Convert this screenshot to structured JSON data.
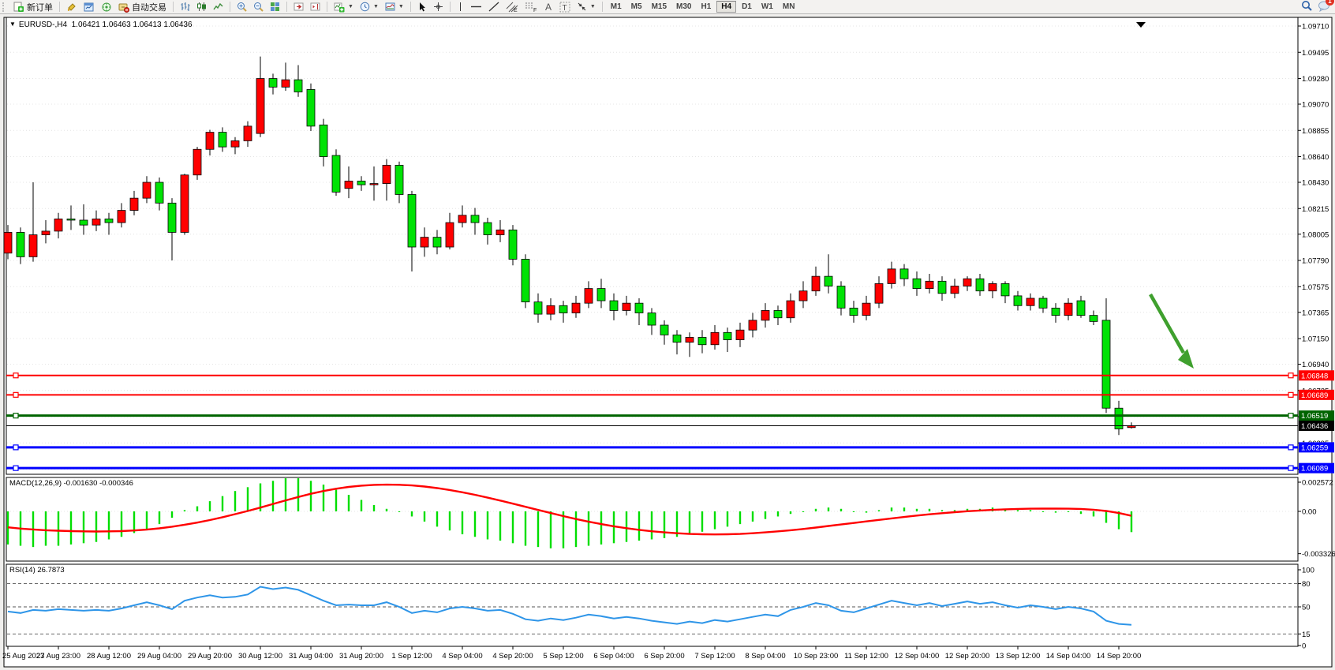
{
  "toolbar": {
    "new_order_label": "新订单",
    "auto_trading_label": "自动交易",
    "timeframes": [
      "M1",
      "M5",
      "M15",
      "M30",
      "H1",
      "H4",
      "D1",
      "W1",
      "MN"
    ],
    "active_timeframe": "H4",
    "notification_count": "1",
    "icon_names": [
      "new-order-icon",
      "styler-icon",
      "market-watch-icon",
      "navigator-icon",
      "auto-trading-icon",
      "bar-chart-icon",
      "candlestick-chart-icon",
      "line-chart-icon",
      "zoom-in-icon",
      "zoom-out-icon",
      "tile-windows-icon",
      "auto-scroll-icon",
      "chart-shift-icon",
      "indicators-icon",
      "periods-icon",
      "templates-icon",
      "cursor-icon",
      "crosshair-icon",
      "vertical-line-icon",
      "horizontal-line-icon",
      "trendline-icon",
      "equidistant-channel-icon",
      "fibonacci-icon",
      "text-icon",
      "label-icon",
      "arrows-icon",
      "search-icon",
      "chat-icon"
    ]
  },
  "chart_header": {
    "dropdown_glyph": "▼",
    "symbol_period": "EURUSD-,H4",
    "ohlc": "1.06421 1.06463 1.06413 1.06436"
  },
  "chart_data": {
    "type": "candlestick-with-indicators",
    "symbol": "EURUSD-",
    "period": "H4",
    "current_ohlc": {
      "open": 1.06421,
      "high": 1.06463,
      "low": 1.06413,
      "close": 1.06436
    },
    "price_axis_ticks": [
      1.0971,
      1.09495,
      1.0928,
      1.0907,
      1.08855,
      1.0864,
      1.0843,
      1.08215,
      1.08005,
      1.0779,
      1.07575,
      1.07365,
      1.0715,
      1.0694,
      1.06725,
      1.0651,
      1.06295,
      1.0608
    ],
    "x_axis_labels": [
      "25 Aug 2023",
      "27 Aug 23:00",
      "28 Aug 12:00",
      "29 Aug 04:00",
      "29 Aug 20:00",
      "30 Aug 12:00",
      "31 Aug 04:00",
      "31 Aug 20:00",
      "1 Sep 12:00",
      "4 Sep 04:00",
      "4 Sep 20:00",
      "5 Sep 12:00",
      "6 Sep 04:00",
      "6 Sep 20:00",
      "7 Sep 12:00",
      "8 Sep 04:00",
      "10 Sep 23:00",
      "11 Sep 12:00",
      "12 Sep 04:00",
      "12 Sep 20:00",
      "13 Sep 12:00",
      "14 Sep 04:00",
      "14 Sep 20:00"
    ],
    "x_label_step": 4,
    "candles": [
      [
        1.0785,
        1.0808,
        1.078,
        1.0802
      ],
      [
        1.0802,
        1.0806,
        1.0776,
        1.0782
      ],
      [
        1.0782,
        1.0843,
        1.0778,
        1.08
      ],
      [
        1.08,
        1.0812,
        1.0793,
        1.0803
      ],
      [
        1.0803,
        1.0818,
        1.0797,
        1.0813
      ],
      [
        1.0813,
        1.0824,
        1.0804,
        1.0812
      ],
      [
        1.0812,
        1.0825,
        1.08,
        1.0808
      ],
      [
        1.0808,
        1.082,
        1.0803,
        1.0813
      ],
      [
        1.0813,
        1.0818,
        1.08,
        1.081
      ],
      [
        1.081,
        1.0826,
        1.0806,
        1.082
      ],
      [
        1.082,
        1.0836,
        1.0816,
        1.083
      ],
      [
        1.083,
        1.0848,
        1.0826,
        1.0843
      ],
      [
        1.0843,
        1.0847,
        1.082,
        1.0826
      ],
      [
        1.0826,
        1.083,
        1.0779,
        1.0802
      ],
      [
        1.0802,
        1.085,
        1.08,
        1.0849
      ],
      [
        1.0849,
        1.0872,
        1.0845,
        1.087
      ],
      [
        1.087,
        1.0886,
        1.0865,
        1.0884
      ],
      [
        1.0884,
        1.0888,
        1.0868,
        1.0872
      ],
      [
        1.0872,
        1.088,
        1.0866,
        1.0877
      ],
      [
        1.0877,
        1.0893,
        1.0872,
        1.0889
      ],
      [
        1.0883,
        1.0946,
        1.088,
        1.0928
      ],
      [
        1.0928,
        1.0932,
        1.0915,
        1.0921
      ],
      [
        1.0921,
        1.0941,
        1.0918,
        1.0927
      ],
      [
        1.0927,
        1.0939,
        1.0913,
        1.0917
      ],
      [
        1.0919,
        1.0924,
        1.0885,
        1.0889
      ],
      [
        1.089,
        1.0895,
        1.0856,
        1.0864
      ],
      [
        1.0865,
        1.087,
        1.0832,
        1.0835
      ],
      [
        1.0838,
        1.0856,
        1.083,
        1.0844
      ],
      [
        1.0844,
        1.0848,
        1.0836,
        1.0841
      ],
      [
        1.0841,
        1.0856,
        1.0828,
        1.0842
      ],
      [
        1.0842,
        1.0862,
        1.0828,
        1.0857
      ],
      [
        1.0857,
        1.086,
        1.0826,
        1.0833
      ],
      [
        1.0833,
        1.0836,
        1.077,
        1.079
      ],
      [
        1.079,
        1.0806,
        1.0782,
        1.0798
      ],
      [
        1.0798,
        1.0804,
        1.0784,
        1.079
      ],
      [
        1.079,
        1.0818,
        1.0788,
        1.081
      ],
      [
        1.081,
        1.0824,
        1.0806,
        1.0816
      ],
      [
        1.0816,
        1.0822,
        1.08,
        1.081
      ],
      [
        1.081,
        1.0814,
        1.0792,
        1.08
      ],
      [
        1.08,
        1.0812,
        1.0794,
        1.0804
      ],
      [
        1.0804,
        1.0808,
        1.0775,
        1.078
      ],
      [
        1.078,
        1.0784,
        1.074,
        1.0745
      ],
      [
        1.0745,
        1.0752,
        1.0728,
        1.0735
      ],
      [
        1.0735,
        1.0748,
        1.073,
        1.0742
      ],
      [
        1.0742,
        1.0746,
        1.0728,
        1.0736
      ],
      [
        1.0736,
        1.075,
        1.0732,
        1.0744
      ],
      [
        1.0744,
        1.0762,
        1.074,
        1.0756
      ],
      [
        1.0756,
        1.0764,
        1.074,
        1.0746
      ],
      [
        1.0746,
        1.0752,
        1.073,
        1.0738
      ],
      [
        1.0738,
        1.075,
        1.0734,
        1.0744
      ],
      [
        1.0744,
        1.0748,
        1.0726,
        1.0736
      ],
      [
        1.0736,
        1.074,
        1.0718,
        1.0726
      ],
      [
        1.0726,
        1.073,
        1.071,
        1.0718
      ],
      [
        1.0718,
        1.0722,
        1.0702,
        1.0712
      ],
      [
        1.0712,
        1.072,
        1.07,
        1.0716
      ],
      [
        1.0716,
        1.0722,
        1.0703,
        1.071
      ],
      [
        1.071,
        1.0726,
        1.0706,
        1.072
      ],
      [
        1.072,
        1.0724,
        1.0704,
        1.0714
      ],
      [
        1.0714,
        1.0728,
        1.0708,
        1.0722
      ],
      [
        1.0722,
        1.0736,
        1.0716,
        1.073
      ],
      [
        1.073,
        1.0744,
        1.0724,
        1.0738
      ],
      [
        1.0738,
        1.0742,
        1.0726,
        1.0732
      ],
      [
        1.0732,
        1.0752,
        1.0728,
        1.0746
      ],
      [
        1.0746,
        1.0762,
        1.074,
        1.0754
      ],
      [
        1.0754,
        1.0774,
        1.075,
        1.0766
      ],
      [
        1.0766,
        1.0784,
        1.0752,
        1.0758
      ],
      [
        1.0758,
        1.0762,
        1.0734,
        1.074
      ],
      [
        1.074,
        1.0746,
        1.0728,
        1.0734
      ],
      [
        1.0734,
        1.075,
        1.073,
        1.0744
      ],
      [
        1.0744,
        1.0766,
        1.074,
        1.076
      ],
      [
        1.076,
        1.0778,
        1.0756,
        1.0772
      ],
      [
        1.0772,
        1.0776,
        1.0758,
        1.0764
      ],
      [
        1.0764,
        1.077,
        1.075,
        1.0756
      ],
      [
        1.0756,
        1.0768,
        1.0752,
        1.0762
      ],
      [
        1.0762,
        1.0766,
        1.0746,
        1.0752
      ],
      [
        1.0752,
        1.0764,
        1.0748,
        1.0758
      ],
      [
        1.0758,
        1.0766,
        1.0754,
        1.0764
      ],
      [
        1.0764,
        1.0768,
        1.075,
        1.0754
      ],
      [
        1.0754,
        1.0762,
        1.0748,
        1.076
      ],
      [
        1.076,
        1.0762,
        1.0744,
        1.075
      ],
      [
        1.075,
        1.0754,
        1.0738,
        1.0742
      ],
      [
        1.0742,
        1.0752,
        1.0738,
        1.0748
      ],
      [
        1.0748,
        1.075,
        1.0736,
        1.074
      ],
      [
        1.074,
        1.0744,
        1.0728,
        1.0734
      ],
      [
        1.0734,
        1.0748,
        1.073,
        1.0744
      ],
      [
        1.0746,
        1.075,
        1.0732,
        1.0734
      ],
      [
        1.0734,
        1.0738,
        1.0726,
        1.0729
      ],
      [
        1.073,
        1.0748,
        1.0654,
        1.0658
      ],
      [
        1.0658,
        1.0664,
        1.0636,
        1.0641
      ],
      [
        1.06421,
        1.06463,
        1.06413,
        1.06436
      ]
    ],
    "hlines": [
      {
        "price": 1.06848,
        "color": "#FF0000",
        "width": 2,
        "handles": true
      },
      {
        "price": 1.06689,
        "color": "#FF0000",
        "width": 2,
        "handles": true
      },
      {
        "price": 1.06519,
        "color": "#006400",
        "width": 3,
        "handles": true
      },
      {
        "price": 1.06436,
        "color": "#000000",
        "width": 1,
        "handles": false,
        "current": true
      },
      {
        "price": 1.06259,
        "color": "#0000FF",
        "width": 3,
        "handles": true
      },
      {
        "price": 1.06089,
        "color": "#0000FF",
        "width": 3,
        "handles": true
      }
    ],
    "arrow_annotation": {
      "color": "#3FA02E",
      "direction": "down-right"
    },
    "macd": {
      "label": "MACD(12,26,9) -0.001630 -0.000346",
      "main_value": -0.00163,
      "signal_value": -0.000346,
      "axis_ticks": [
        "0.002572",
        "0.00",
        "-0.003326"
      ],
      "axis_tick_values": [
        0.002572,
        0,
        -0.003326
      ],
      "histogram": [
        -0.0026,
        -0.0027,
        -0.0028,
        -0.0027,
        -0.0027,
        -0.0026,
        -0.0025,
        -0.0024,
        -0.0022,
        -0.002,
        -0.0017,
        -0.0014,
        -0.001,
        -0.0005,
        0.0001,
        0.0004,
        0.0008,
        0.0012,
        0.0016,
        0.0019,
        0.0022,
        0.0024,
        0.0026,
        0.0026,
        0.0024,
        0.0021,
        0.0017,
        0.0013,
        0.0009,
        0.0005,
        0.0002,
        0.0,
        -0.0004,
        -0.0008,
        -0.0012,
        -0.0015,
        -0.0018,
        -0.002,
        -0.0022,
        -0.0023,
        -0.0025,
        -0.0027,
        -0.0028,
        -0.0029,
        -0.0029,
        -0.0028,
        -0.0027,
        -0.0026,
        -0.0025,
        -0.0024,
        -0.0023,
        -0.0022,
        -0.0021,
        -0.002,
        -0.0018,
        -0.0016,
        -0.0014,
        -0.0012,
        -0.001,
        -0.0008,
        -0.0006,
        -0.0004,
        -0.0002,
        0.0,
        0.0002,
        0.0003,
        0.0002,
        0.0,
        -0.0001,
        0.0001,
        0.0003,
        0.0003,
        0.0002,
        0.0002,
        0.0001,
        0.0001,
        0.0002,
        0.0002,
        0.0003,
        0.0002,
        0.0001,
        0.0001,
        0.0,
        -0.0001,
        0.0,
        -0.0002,
        -0.0004,
        -0.0009,
        -0.0014,
        -0.00163
      ],
      "signal": [
        -0.00125,
        -0.00135,
        -0.00142,
        -0.00148,
        -0.00152,
        -0.00155,
        -0.00157,
        -0.00158,
        -0.00157,
        -0.00155,
        -0.0015,
        -0.00143,
        -0.00133,
        -0.0012,
        -0.00105,
        -0.00088,
        -0.00068,
        -0.00046,
        -0.00022,
        3e-05,
        0.0003,
        0.00058,
        0.00086,
        0.00113,
        0.00138,
        0.0016,
        0.00178,
        0.00192,
        0.00202,
        0.00208,
        0.0021,
        0.00209,
        0.00204,
        0.00195,
        0.00183,
        0.00168,
        0.0015,
        0.0013,
        0.00108,
        0.00085,
        0.00061,
        0.00036,
        0.00011,
        -0.00013,
        -0.00037,
        -0.0006,
        -0.00081,
        -0.001,
        -0.00117,
        -0.00132,
        -0.00145,
        -0.00156,
        -0.00165,
        -0.00172,
        -0.00177,
        -0.0018,
        -0.00181,
        -0.0018,
        -0.00177,
        -0.00172,
        -0.00165,
        -0.00157,
        -0.00148,
        -0.00138,
        -0.00127,
        -0.00115,
        -0.00103,
        -0.00091,
        -0.00079,
        -0.00067,
        -0.00055,
        -0.00044,
        -0.00033,
        -0.00023,
        -0.00014,
        -6e-05,
        1e-05,
        7e-05,
        0.00012,
        0.00016,
        0.00019,
        0.00021,
        0.00022,
        0.00022,
        0.00021,
        0.00019,
        0.00013,
        3e-05,
        -0.00013,
        -0.00035
      ]
    },
    "rsi": {
      "label": "RSI(14) 26.7873",
      "value": 26.7873,
      "levels": [
        80,
        50,
        15
      ],
      "axis_ticks": [
        "100",
        "80",
        "50",
        "15",
        "0"
      ],
      "axis_tick_values": [
        100,
        80,
        50,
        15,
        0
      ],
      "values": [
        44,
        42,
        46,
        45,
        47,
        46,
        45,
        46,
        45,
        48,
        52,
        56,
        52,
        47,
        58,
        62,
        65,
        62,
        63,
        66,
        76,
        73,
        75,
        72,
        65,
        58,
        52,
        53,
        52,
        52,
        56,
        50,
        42,
        45,
        43,
        48,
        50,
        48,
        45,
        46,
        41,
        34,
        32,
        35,
        33,
        36,
        40,
        38,
        35,
        37,
        35,
        32,
        30,
        28,
        31,
        29,
        33,
        31,
        34,
        37,
        40,
        38,
        46,
        50,
        55,
        52,
        45,
        43,
        48,
        53,
        58,
        55,
        52,
        55,
        51,
        54,
        57,
        54,
        56,
        52,
        49,
        52,
        50,
        47,
        50,
        48,
        44,
        32,
        28,
        26.7873
      ]
    },
    "colors": {
      "bull_candle": "#FF0000",
      "bear_candle": "#00E205",
      "candle_outline": "#000000",
      "macd_histogram": "#00DE00",
      "macd_signal": "#FF0000",
      "rsi_line": "#2E95E8",
      "background": "#FFFFFF",
      "grid": "#E4E4E4",
      "axis_text": "#000000"
    },
    "legend_position": "top-left",
    "grid": "dotted-horizontal"
  }
}
